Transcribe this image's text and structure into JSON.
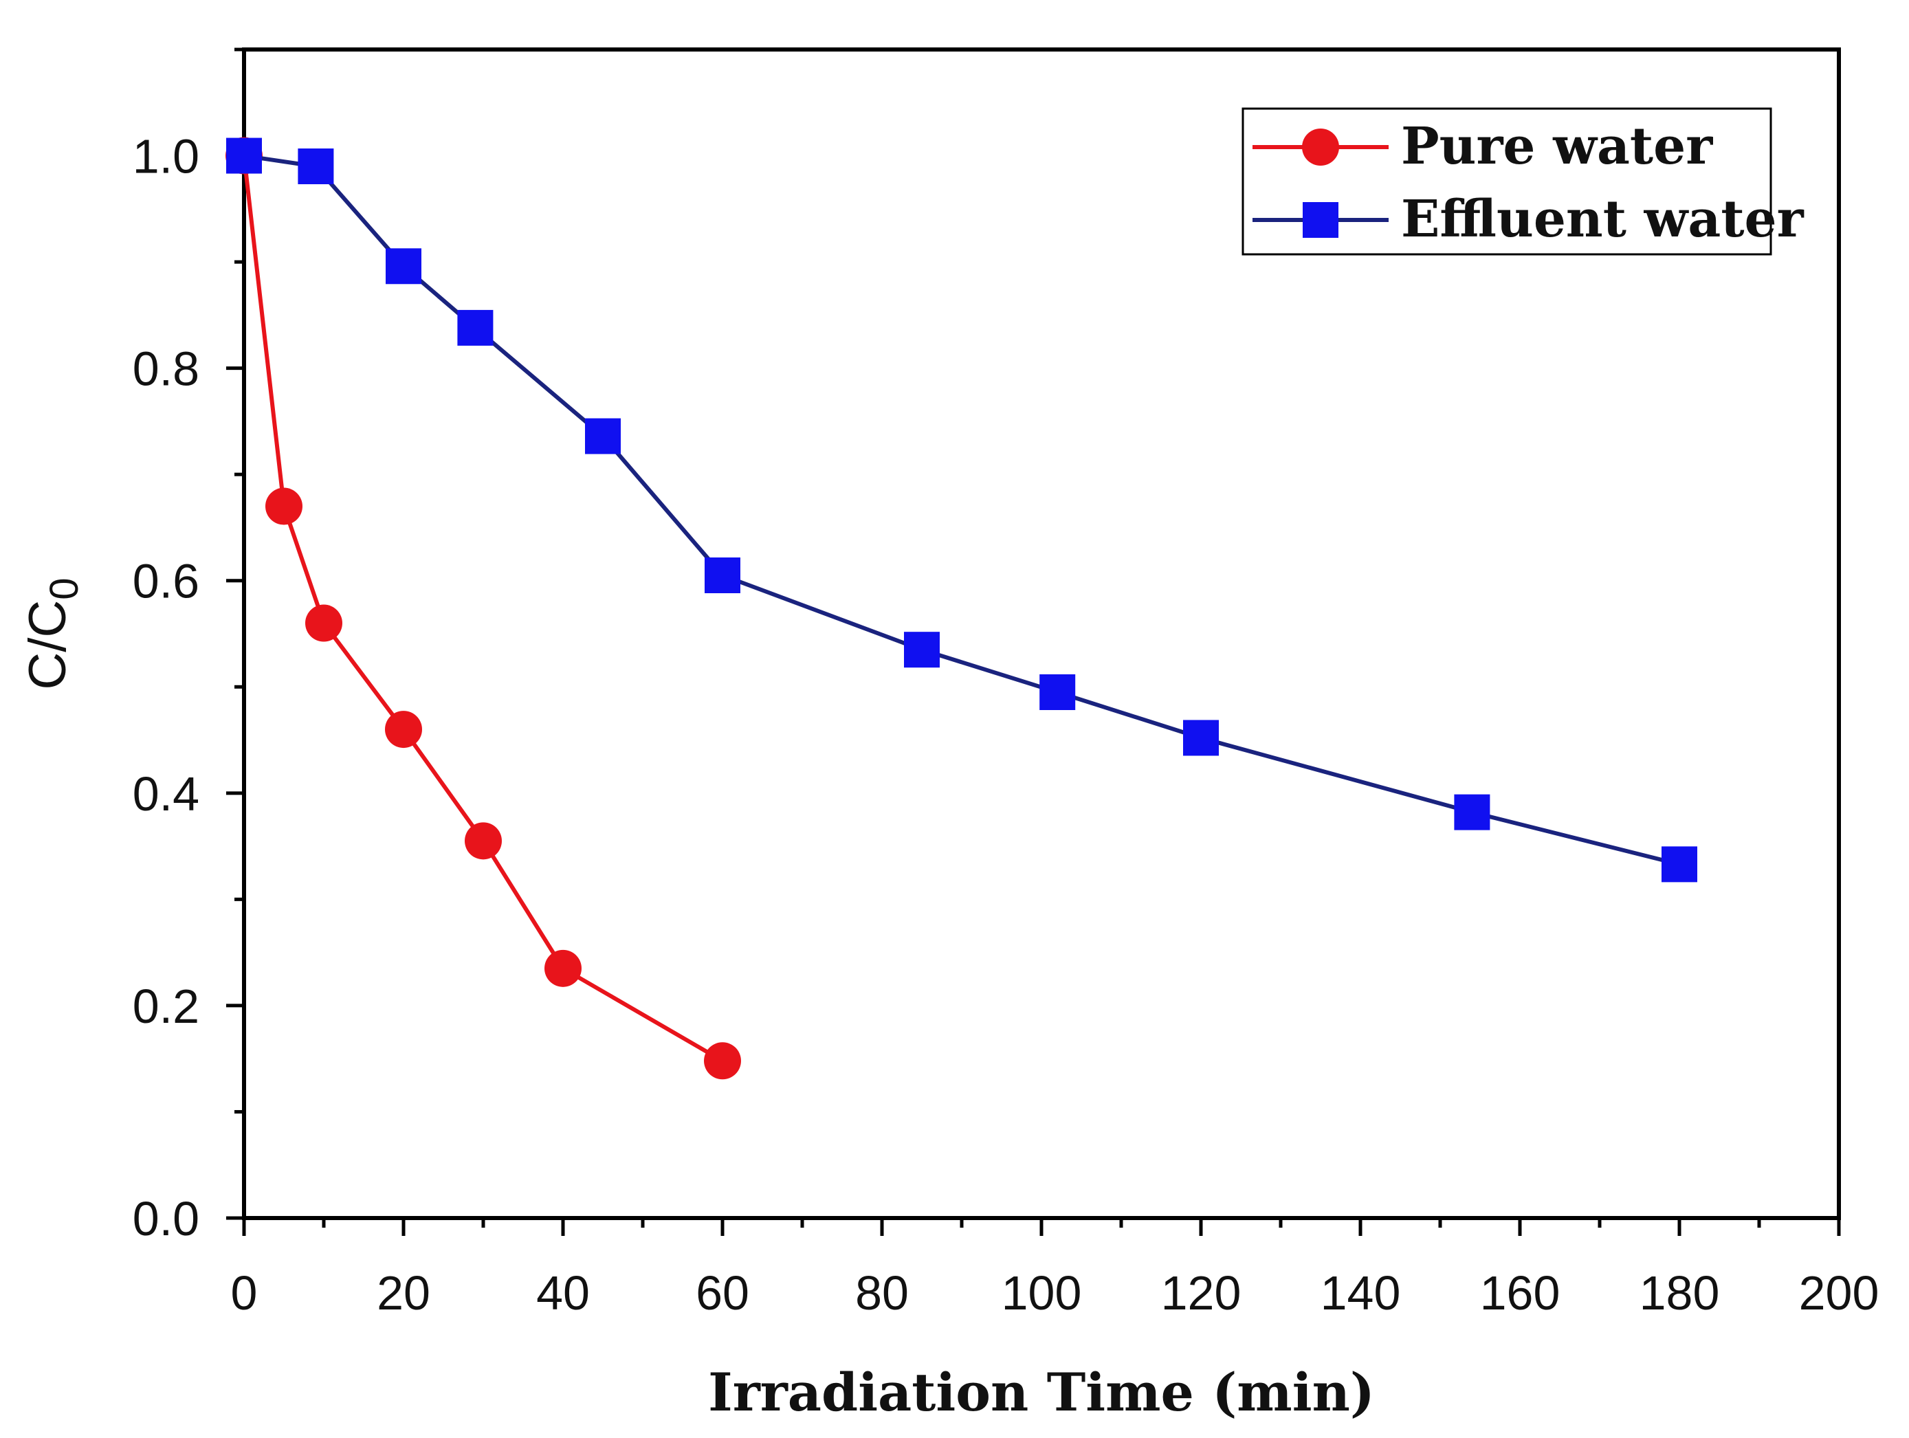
{
  "chart_data": {
    "type": "line",
    "xlabel": "Irradiation Time (min)",
    "ylabel": "C/C",
    "ylabel_subscript": "0",
    "xlim": [
      0,
      200
    ],
    "ylim": [
      0,
      1.1
    ],
    "x_ticks": [
      "0",
      "20",
      "40",
      "60",
      "80",
      "100",
      "120",
      "140",
      "160",
      "180",
      "200"
    ],
    "y_ticks": [
      "0.0",
      "0.2",
      "0.4",
      "0.6",
      "0.8",
      "1.0"
    ],
    "grid": false,
    "legend_position": "top-right",
    "series": [
      {
        "name": "Pure water",
        "color": "#e8141b",
        "marker": "circle",
        "x": [
          0,
          5,
          10,
          20,
          30,
          40,
          60
        ],
        "y": [
          1.0,
          0.67,
          0.56,
          0.46,
          0.355,
          0.235,
          0.148
        ]
      },
      {
        "name": "Effluent water",
        "color": "#1a237e",
        "marker_color": "#1010f0",
        "marker": "square",
        "x": [
          0,
          9,
          20,
          29,
          45,
          60,
          85,
          102,
          120,
          154,
          180
        ],
        "y": [
          1.0,
          0.99,
          0.896,
          0.838,
          0.736,
          0.605,
          0.535,
          0.495,
          0.452,
          0.382,
          0.333
        ]
      }
    ]
  }
}
